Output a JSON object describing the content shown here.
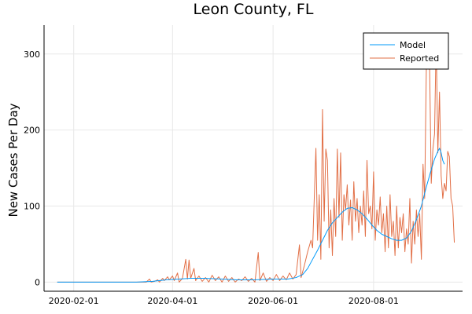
{
  "chart_data": {
    "type": "line",
    "title": "Leon County, FL",
    "xlabel": "",
    "ylabel": "New Cases Per Day",
    "x_start": "2020-01-22",
    "x_ticks": [
      "2020-02-01",
      "2020-04-01",
      "2020-06-01",
      "2020-08-01"
    ],
    "y_ticks": [
      0,
      100,
      200,
      300
    ],
    "xlim": [
      "2020-01-14",
      "2020-09-24"
    ],
    "ylim": [
      -12,
      338
    ],
    "grid": true,
    "legend_position": "top-right",
    "series": [
      {
        "name": "Model",
        "color": "#009AFA",
        "points": [
          [
            "2020-01-22",
            0
          ],
          [
            "2020-02-15",
            0
          ],
          [
            "2020-03-10",
            0
          ],
          [
            "2020-03-20",
            1
          ],
          [
            "2020-03-28",
            3
          ],
          [
            "2020-04-05",
            4
          ],
          [
            "2020-04-12",
            5
          ],
          [
            "2020-04-20",
            5
          ],
          [
            "2020-05-01",
            4
          ],
          [
            "2020-05-10",
            3
          ],
          [
            "2020-05-20",
            3
          ],
          [
            "2020-06-01",
            4
          ],
          [
            "2020-06-10",
            4
          ],
          [
            "2020-06-15",
            6
          ],
          [
            "2020-06-19",
            10
          ],
          [
            "2020-06-22",
            18
          ],
          [
            "2020-06-25",
            30
          ],
          [
            "2020-06-28",
            42
          ],
          [
            "2020-07-01",
            55
          ],
          [
            "2020-07-04",
            68
          ],
          [
            "2020-07-07",
            78
          ],
          [
            "2020-07-10",
            85
          ],
          [
            "2020-07-13",
            92
          ],
          [
            "2020-07-16",
            97
          ],
          [
            "2020-07-19",
            98
          ],
          [
            "2020-07-22",
            95
          ],
          [
            "2020-07-25",
            90
          ],
          [
            "2020-07-28",
            83
          ],
          [
            "2020-07-31",
            75
          ],
          [
            "2020-08-03",
            68
          ],
          [
            "2020-08-06",
            63
          ],
          [
            "2020-08-09",
            60
          ],
          [
            "2020-08-12",
            57
          ],
          [
            "2020-08-15",
            55
          ],
          [
            "2020-08-18",
            55
          ],
          [
            "2020-08-21",
            58
          ],
          [
            "2020-08-24",
            67
          ],
          [
            "2020-08-27",
            82
          ],
          [
            "2020-08-30",
            100
          ],
          [
            "2020-09-02",
            125
          ],
          [
            "2020-09-05",
            148
          ],
          [
            "2020-09-07",
            162
          ],
          [
            "2020-09-09",
            172
          ],
          [
            "2020-09-10",
            176
          ],
          [
            "2020-09-11",
            170
          ],
          [
            "2020-09-12",
            160
          ],
          [
            "2020-09-13",
            155
          ]
        ]
      },
      {
        "name": "Reported",
        "color": "#E26F46",
        "points": [
          [
            "2020-01-22",
            0
          ],
          [
            "2020-03-16",
            0
          ],
          [
            "2020-03-18",
            4
          ],
          [
            "2020-03-19",
            0
          ],
          [
            "2020-03-21",
            1
          ],
          [
            "2020-03-23",
            3
          ],
          [
            "2020-03-24",
            0
          ],
          [
            "2020-03-26",
            5
          ],
          [
            "2020-03-27",
            2
          ],
          [
            "2020-03-29",
            7
          ],
          [
            "2020-03-30",
            3
          ],
          [
            "2020-04-01",
            8
          ],
          [
            "2020-04-02",
            2
          ],
          [
            "2020-04-04",
            12
          ],
          [
            "2020-04-05",
            0
          ],
          [
            "2020-04-07",
            5
          ],
          [
            "2020-04-09",
            30
          ],
          [
            "2020-04-10",
            4
          ],
          [
            "2020-04-11",
            29
          ],
          [
            "2020-04-12",
            5
          ],
          [
            "2020-04-14",
            18
          ],
          [
            "2020-04-15",
            2
          ],
          [
            "2020-04-17",
            8
          ],
          [
            "2020-04-19",
            1
          ],
          [
            "2020-04-21",
            6
          ],
          [
            "2020-04-23",
            0
          ],
          [
            "2020-04-25",
            9
          ],
          [
            "2020-04-27",
            2
          ],
          [
            "2020-04-29",
            7
          ],
          [
            "2020-05-01",
            0
          ],
          [
            "2020-05-03",
            8
          ],
          [
            "2020-05-05",
            1
          ],
          [
            "2020-05-07",
            6
          ],
          [
            "2020-05-09",
            0
          ],
          [
            "2020-05-11",
            4
          ],
          [
            "2020-05-13",
            2
          ],
          [
            "2020-05-15",
            7
          ],
          [
            "2020-05-17",
            1
          ],
          [
            "2020-05-19",
            5
          ],
          [
            "2020-05-21",
            0
          ],
          [
            "2020-05-23",
            39
          ],
          [
            "2020-05-24",
            2
          ],
          [
            "2020-05-26",
            12
          ],
          [
            "2020-05-28",
            1
          ],
          [
            "2020-05-30",
            6
          ],
          [
            "2020-06-01",
            2
          ],
          [
            "2020-06-03",
            10
          ],
          [
            "2020-06-05",
            2
          ],
          [
            "2020-06-07",
            8
          ],
          [
            "2020-06-09",
            3
          ],
          [
            "2020-06-11",
            12
          ],
          [
            "2020-06-13",
            4
          ],
          [
            "2020-06-15",
            10
          ],
          [
            "2020-06-17",
            49
          ],
          [
            "2020-06-18",
            6
          ],
          [
            "2020-06-20",
            22
          ],
          [
            "2020-06-22",
            40
          ],
          [
            "2020-06-24",
            55
          ],
          [
            "2020-06-25",
            45
          ],
          [
            "2020-06-27",
            176
          ],
          [
            "2020-06-28",
            55
          ],
          [
            "2020-06-29",
            115
          ],
          [
            "2020-06-30",
            30
          ],
          [
            "2020-07-01",
            227
          ],
          [
            "2020-07-02",
            80
          ],
          [
            "2020-07-03",
            175
          ],
          [
            "2020-07-04",
            160
          ],
          [
            "2020-07-05",
            45
          ],
          [
            "2020-07-06",
            95
          ],
          [
            "2020-07-07",
            35
          ],
          [
            "2020-07-08",
            110
          ],
          [
            "2020-07-09",
            60
          ],
          [
            "2020-07-10",
            175
          ],
          [
            "2020-07-11",
            85
          ],
          [
            "2020-07-12",
            170
          ],
          [
            "2020-07-13",
            55
          ],
          [
            "2020-07-14",
            115
          ],
          [
            "2020-07-15",
            95
          ],
          [
            "2020-07-16",
            128
          ],
          [
            "2020-07-17",
            75
          ],
          [
            "2020-07-18",
            108
          ],
          [
            "2020-07-19",
            55
          ],
          [
            "2020-07-20",
            132
          ],
          [
            "2020-07-21",
            80
          ],
          [
            "2020-07-22",
            110
          ],
          [
            "2020-07-23",
            65
          ],
          [
            "2020-07-24",
            100
          ],
          [
            "2020-07-25",
            75
          ],
          [
            "2020-07-26",
            120
          ],
          [
            "2020-07-27",
            60
          ],
          [
            "2020-07-28",
            160
          ],
          [
            "2020-07-29",
            90
          ],
          [
            "2020-07-30",
            100
          ],
          [
            "2020-07-31",
            70
          ],
          [
            "2020-08-01",
            145
          ],
          [
            "2020-08-02",
            55
          ],
          [
            "2020-08-03",
            95
          ],
          [
            "2020-08-04",
            75
          ],
          [
            "2020-08-05",
            112
          ],
          [
            "2020-08-06",
            65
          ],
          [
            "2020-08-07",
            90
          ],
          [
            "2020-08-08",
            40
          ],
          [
            "2020-08-09",
            100
          ],
          [
            "2020-08-10",
            45
          ],
          [
            "2020-08-11",
            115
          ],
          [
            "2020-08-12",
            60
          ],
          [
            "2020-08-13",
            80
          ],
          [
            "2020-08-14",
            35
          ],
          [
            "2020-08-15",
            100
          ],
          [
            "2020-08-16",
            45
          ],
          [
            "2020-08-17",
            85
          ],
          [
            "2020-08-18",
            65
          ],
          [
            "2020-08-19",
            90
          ],
          [
            "2020-08-20",
            40
          ],
          [
            "2020-08-21",
            70
          ],
          [
            "2020-08-22",
            50
          ],
          [
            "2020-08-23",
            110
          ],
          [
            "2020-08-24",
            25
          ],
          [
            "2020-08-25",
            80
          ],
          [
            "2020-08-26",
            50
          ],
          [
            "2020-08-27",
            95
          ],
          [
            "2020-08-28",
            60
          ],
          [
            "2020-08-29",
            90
          ],
          [
            "2020-08-30",
            30
          ],
          [
            "2020-08-31",
            155
          ],
          [
            "2020-09-01",
            110
          ],
          [
            "2020-09-02",
            280
          ],
          [
            "2020-09-03",
            325
          ],
          [
            "2020-09-04",
            285
          ],
          [
            "2020-09-05",
            130
          ],
          [
            "2020-09-06",
            175
          ],
          [
            "2020-09-07",
            195
          ],
          [
            "2020-09-08",
            320
          ],
          [
            "2020-09-09",
            170
          ],
          [
            "2020-09-10",
            250
          ],
          [
            "2020-09-11",
            140
          ],
          [
            "2020-09-12",
            110
          ],
          [
            "2020-09-13",
            130
          ],
          [
            "2020-09-14",
            120
          ],
          [
            "2020-09-15",
            172
          ],
          [
            "2020-09-16",
            165
          ],
          [
            "2020-09-17",
            110
          ],
          [
            "2020-09-18",
            100
          ],
          [
            "2020-09-19",
            52
          ]
        ]
      }
    ]
  }
}
